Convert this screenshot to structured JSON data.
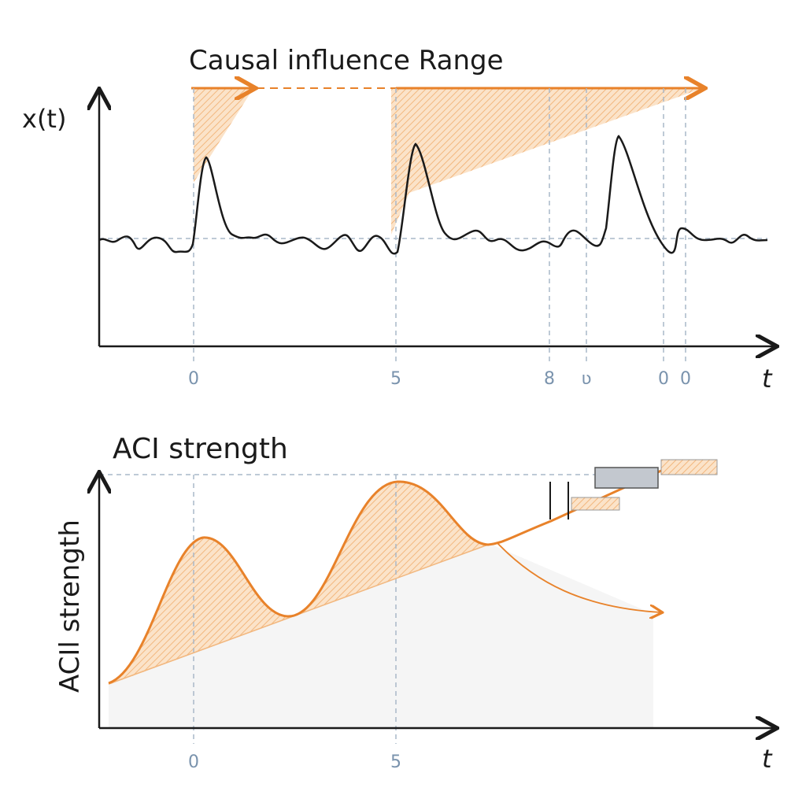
{
  "colors": {
    "accent": "#e8822a",
    "hatch": "#f5c08e",
    "signal": "#1a1a1a",
    "tick": "#7a93ad",
    "guide": "#a9b8c8",
    "gray_fill": "#f5f5f5",
    "gray_box": "#c3c8cf"
  },
  "top_panel": {
    "title": "Causal influence Range",
    "ylabel": "x(t)",
    "xlabel": "t",
    "ticks": [
      "0",
      "5",
      "8",
      "ʋ",
      "0",
      "0"
    ]
  },
  "bottom_panel": {
    "title": "ACI strength",
    "ylabel": "ACIl strength",
    "xlabel": "t",
    "ticks": [
      "0",
      "5"
    ]
  }
}
